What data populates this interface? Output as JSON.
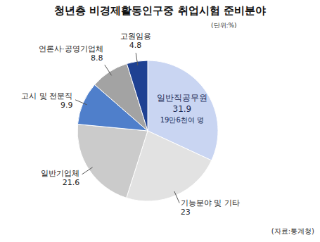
{
  "chart_data": {
    "type": "pie",
    "title": "청년층 비경제활동인구중 취업시험 준비분야",
    "unit": "(단위:%)",
    "source": "(자료:통계청)",
    "categories": [
      "일반직공무원",
      "기능분야 및 기타",
      "일반기업체",
      "고시 및 전문직",
      "언론사·공영기업체",
      "고원임용"
    ],
    "values": [
      31.9,
      23,
      21.6,
      9.9,
      8.8,
      4.8
    ],
    "colors": [
      "#c9d5f2",
      "#e2e2e2",
      "#cbcbcb",
      "#4f7fcb",
      "#a3a3a3",
      "#1f4192"
    ],
    "data_labels": true,
    "annotations": [
      {
        "category": "일반직공무원",
        "text": "19만6천여 명"
      }
    ]
  }
}
